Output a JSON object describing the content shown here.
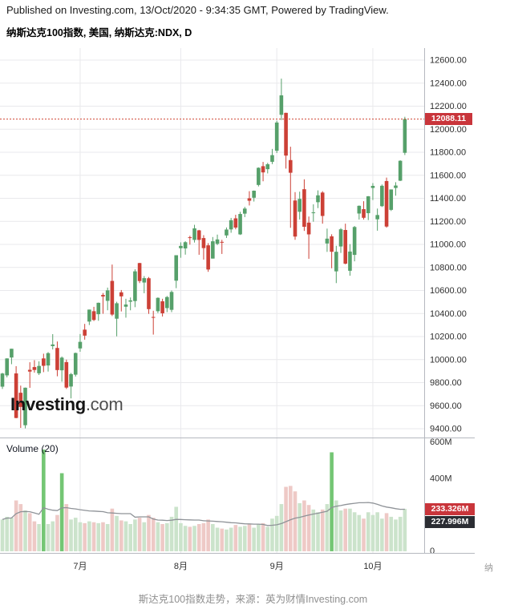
{
  "header": {
    "publish_line": "Published on Investing.com, 13/Oct/2020 - 9:34:35 GMT, Powered by TradingView."
  },
  "logo": {
    "main": "Investing",
    "suffix": ".com"
  },
  "volume_pane": {
    "indicator_label": "Volume (20)",
    "badge_red": "233.326M",
    "badge_black": "227.996M"
  },
  "price_badge": "12088.11",
  "axis_overflow_text": "纳",
  "caption": "斯达克100指数走势，来源：英为财情Investing.com",
  "colors": {
    "up": "#56a06a",
    "down": "#cc4036",
    "volume_up": "#cbe3cb",
    "volume_down": "#eec9c6",
    "volume_spike": "#74c674",
    "ma_line": "#8f9398",
    "price_line": "#cf4532",
    "badge_red_bg": "#c9353b",
    "badge_black_bg": "#2b2d33",
    "grid": "#e9e9ec",
    "axis_border": "#b5b8bf",
    "axis_text": "#2f2f2f"
  },
  "chart_data": {
    "type": "candlestick",
    "title": "纳斯达克100指数, 美国, 纳斯达克:NDX, D",
    "symbol": "纳斯达克:NDX",
    "interval": "D",
    "last_price": 12088.11,
    "price_axis": {
      "min": 9400,
      "max": 12600,
      "step": 200,
      "tick_labels": [
        "12600.00",
        "12400.00",
        "12200.00",
        "12000.00",
        "11800.00",
        "11600.00",
        "11400.00",
        "11200.00",
        "11000.00",
        "10800.00",
        "10600.00",
        "10400.00",
        "10200.00",
        "10000.00",
        "9800.00",
        "9600.00",
        "9400.00"
      ]
    },
    "volume_axis": {
      "tick_labels": [
        "600M",
        "400M",
        "0"
      ],
      "max_m": 600
    },
    "x_ticks": [
      {
        "label": "7月",
        "index": 17
      },
      {
        "label": "8月",
        "index": 39
      },
      {
        "label": "9月",
        "index": 60
      },
      {
        "label": "10月",
        "index": 81
      }
    ],
    "volume_ma_period": 20,
    "volume_color_overrides": {
      "9": "spike",
      "13": "spike",
      "72": "spike"
    },
    "candles_format": [
      "open",
      "high",
      "low",
      "close",
      "volume_millions"
    ],
    "candles": [
      [
        9765,
        9885,
        9745,
        9879,
        175
      ],
      [
        9863,
        10011,
        9846,
        10010,
        190
      ],
      [
        10018,
        10094,
        9960,
        10094,
        185
      ],
      [
        9880,
        9943,
        9491,
        9493,
        280
      ],
      [
        9712,
        9774,
        9407,
        9589,
        260
      ],
      [
        9430,
        9757,
        9403,
        9756,
        225
      ],
      [
        9911,
        9977,
        9755,
        9896,
        210
      ],
      [
        9935,
        9995,
        9887,
        9910,
        165
      ],
      [
        9881,
        9985,
        9866,
        9945,
        150
      ],
      [
        10010,
        10051,
        9891,
        9946,
        560
      ],
      [
        9949,
        10065,
        9896,
        10056,
        150
      ],
      [
        10117,
        10221,
        10088,
        10131,
        165
      ],
      [
        10101,
        10157,
        9855,
        9909,
        200
      ],
      [
        9907,
        10027,
        9808,
        10017,
        430
      ],
      [
        9978,
        10000,
        9745,
        9757,
        260
      ],
      [
        9766,
        9884,
        9663,
        9874,
        175
      ],
      [
        9869,
        10061,
        9853,
        10057,
        185
      ],
      [
        10097,
        10222,
        10068,
        10154,
        160
      ],
      [
        10260,
        10310,
        10173,
        10208,
        155
      ],
      [
        10330,
        10434,
        10300,
        10434,
        165
      ],
      [
        10420,
        10458,
        10335,
        10344,
        160
      ],
      [
        10394,
        10495,
        10337,
        10493,
        155
      ],
      [
        10561,
        10578,
        10398,
        10548,
        160
      ],
      [
        10510,
        10625,
        10428,
        10601,
        150
      ],
      [
        10683,
        10825,
        10378,
        10391,
        235
      ],
      [
        10355,
        10502,
        10202,
        10489,
        195
      ],
      [
        10584,
        10604,
        10418,
        10549,
        170
      ],
      [
        10459,
        10528,
        10364,
        10478,
        165
      ],
      [
        10503,
        10539,
        10428,
        10514,
        150
      ],
      [
        10508,
        10784,
        10455,
        10766,
        175
      ],
      [
        10838,
        10840,
        10664,
        10682,
        185
      ],
      [
        10669,
        10725,
        10576,
        10707,
        160
      ],
      [
        10706,
        10717,
        10397,
        10438,
        200
      ],
      [
        10370,
        10424,
        10217,
        10363,
        185
      ],
      [
        10420,
        10540,
        10404,
        10536,
        160
      ],
      [
        10506,
        10528,
        10374,
        10402,
        150
      ],
      [
        10447,
        10552,
        10412,
        10543,
        155
      ],
      [
        10432,
        10600,
        10412,
        10587,
        190
      ],
      [
        10685,
        10906,
        10620,
        10906,
        245
      ],
      [
        10967,
        11018,
        10884,
        10987,
        155
      ],
      [
        10965,
        11028,
        10911,
        11019,
        140
      ],
      [
        11062,
        11075,
        10998,
        11059,
        135
      ],
      [
        11039,
        11170,
        11016,
        11139,
        140
      ],
      [
        11122,
        11126,
        10910,
        11039,
        150
      ],
      [
        11055,
        11080,
        10868,
        10968,
        155
      ],
      [
        10992,
        11011,
        10762,
        10782,
        175
      ],
      [
        10877,
        11064,
        10877,
        11027,
        150
      ],
      [
        11005,
        11085,
        10994,
        11043,
        130
      ],
      [
        11022,
        11040,
        10917,
        11019,
        125
      ],
      [
        11078,
        11147,
        11056,
        11129,
        120
      ],
      [
        11130,
        11230,
        11101,
        11210,
        130
      ],
      [
        11226,
        11257,
        11131,
        11146,
        145
      ],
      [
        11087,
        11283,
        11082,
        11264,
        135
      ],
      [
        11267,
        11326,
        11237,
        11311,
        140
      ],
      [
        11400,
        11462,
        11338,
        11379,
        150
      ],
      [
        11405,
        11468,
        11372,
        11466,
        130
      ],
      [
        11516,
        11669,
        11503,
        11665,
        150
      ],
      [
        11679,
        11716,
        11548,
        11625,
        155
      ],
      [
        11653,
        11708,
        11616,
        11696,
        135
      ],
      [
        11717,
        11829,
        11697,
        11775,
        180
      ],
      [
        11813,
        12074,
        11793,
        12058,
        195
      ],
      [
        12125,
        12439,
        12079,
        12294,
        260
      ],
      [
        12142,
        12143,
        11658,
        11771,
        355
      ],
      [
        11732,
        11848,
        11144,
        11622,
        360
      ],
      [
        11381,
        11454,
        11040,
        11068,
        330
      ],
      [
        11283,
        11458,
        11216,
        11395,
        265
      ],
      [
        11479,
        11565,
        11117,
        11153,
        280
      ],
      [
        11189,
        11242,
        10875,
        11087,
        255
      ],
      [
        11275,
        11348,
        11197,
        11278,
        230
      ],
      [
        11366,
        11469,
        11315,
        11426,
        215
      ],
      [
        11450,
        11462,
        11180,
        11247,
        230
      ],
      [
        11008,
        11137,
        10935,
        11050,
        260
      ],
      [
        11070,
        11088,
        10793,
        10936,
        545
      ],
      [
        10766,
        10988,
        10664,
        10936,
        280
      ],
      [
        10982,
        11142,
        10926,
        11131,
        225
      ],
      [
        11125,
        11180,
        10827,
        10833,
        235
      ],
      [
        10771,
        11002,
        10728,
        10938,
        235
      ],
      [
        10909,
        11160,
        10853,
        11151,
        215
      ],
      [
        11268,
        11338,
        11216,
        11335,
        200
      ],
      [
        11306,
        11375,
        11216,
        11231,
        180
      ],
      [
        11271,
        11419,
        11211,
        11418,
        215
      ],
      [
        11490,
        11532,
        11385,
        11508,
        200
      ],
      [
        11218,
        11311,
        11119,
        11255,
        215
      ],
      [
        11332,
        11520,
        11325,
        11509,
        180
      ],
      [
        11550,
        11580,
        11145,
        11155,
        210
      ],
      [
        11300,
        11477,
        11290,
        11477,
        190
      ],
      [
        11490,
        11540,
        11423,
        11511,
        175
      ],
      [
        11553,
        11730,
        11550,
        11726,
        190
      ],
      [
        11795,
        12108,
        11776,
        12088,
        233.3
      ]
    ]
  }
}
